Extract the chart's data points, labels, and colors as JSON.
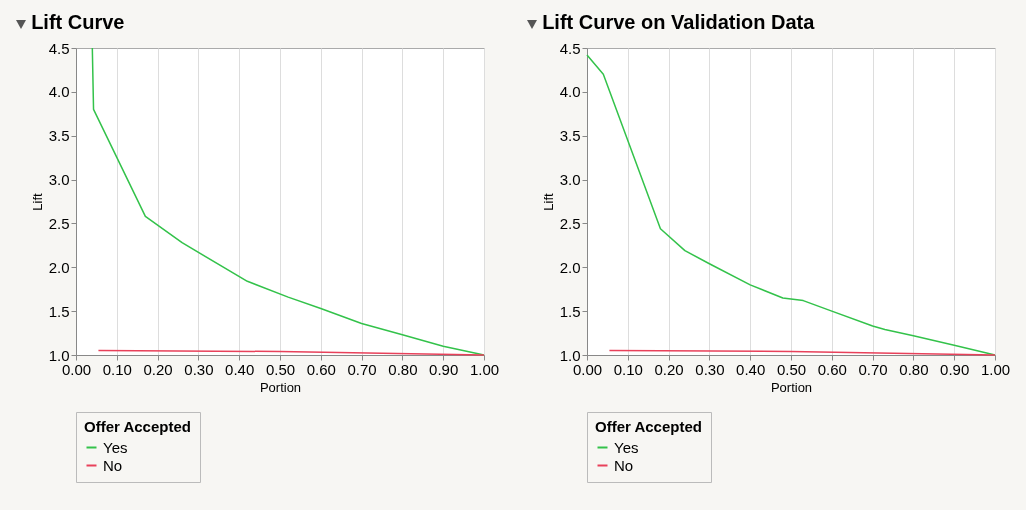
{
  "chart_data": [
    {
      "type": "line",
      "title": "Lift Curve",
      "xlabel": "Portion",
      "ylabel": "Lift",
      "legend_title": "Offer Accepted",
      "legend": "bottom left",
      "grid": "x",
      "xlim": [
        0,
        1
      ],
      "ylim": [
        1,
        4.5
      ],
      "xticks": [
        {
          "value": 0,
          "label": "0.00"
        },
        {
          "value": 0.1,
          "label": "0.10"
        },
        {
          "value": 0.2,
          "label": "0.20"
        },
        {
          "value": 0.3,
          "label": "0.30"
        },
        {
          "value": 0.4,
          "label": "0.40"
        },
        {
          "value": 0.5,
          "label": "0.50"
        },
        {
          "value": 0.6,
          "label": "0.60"
        },
        {
          "value": 0.7,
          "label": "0.70"
        },
        {
          "value": 0.8,
          "label": "0.80"
        },
        {
          "value": 0.9,
          "label": "0.90"
        },
        {
          "value": 1,
          "label": "1.00"
        }
      ],
      "yticks": [
        {
          "value": 1,
          "label": "1.0"
        },
        1.5,
        {
          "value": 2,
          "label": "2.0"
        },
        2.5,
        {
          "value": 3,
          "label": "3.0"
        },
        3.5,
        {
          "value": 4,
          "label": "4.0"
        },
        4.5
      ],
      "series": [
        {
          "name": "Yes",
          "color": "#33c24a",
          "x": [
            0.04,
            0.043,
            0.17,
            0.26,
            0.42,
            0.52,
            0.6,
            0.7,
            0.8,
            0.9,
            1.0
          ],
          "values": [
            4.5,
            3.8,
            2.58,
            2.28,
            1.84,
            1.66,
            1.53,
            1.36,
            1.23,
            1.1,
            1.0
          ]
        },
        {
          "name": "No",
          "color": "#e8415a",
          "x": [
            0.055,
            0.5,
            1.0
          ],
          "values": [
            1.05,
            1.04,
            1.0
          ]
        }
      ]
    },
    {
      "type": "line",
      "title": "Lift Curve on Validation Data",
      "xlabel": "Portion",
      "ylabel": "Lift",
      "legend_title": "Offer Accepted",
      "legend": "bottom left",
      "grid": "x",
      "xlim": [
        0,
        1
      ],
      "ylim": [
        1,
        4.5
      ],
      "xticks": [
        {
          "value": 0,
          "label": "0.00"
        },
        {
          "value": 0.1,
          "label": "0.10"
        },
        {
          "value": 0.2,
          "label": "0.20"
        },
        {
          "value": 0.3,
          "label": "0.30"
        },
        {
          "value": 0.4,
          "label": "0.40"
        },
        {
          "value": 0.5,
          "label": "0.50"
        },
        {
          "value": 0.6,
          "label": "0.60"
        },
        {
          "value": 0.7,
          "label": "0.70"
        },
        {
          "value": 0.8,
          "label": "0.80"
        },
        {
          "value": 0.9,
          "label": "0.90"
        },
        {
          "value": 1,
          "label": "1.00"
        }
      ],
      "yticks": [
        {
          "value": 1,
          "label": "1.0"
        },
        1.5,
        {
          "value": 2,
          "label": "2.0"
        },
        2.5,
        {
          "value": 3,
          "label": "3.0"
        },
        3.5,
        {
          "value": 4,
          "label": "4.0"
        },
        4.5
      ],
      "series": [
        {
          "name": "Yes",
          "color": "#33c24a",
          "x": [
            0,
            0.04,
            0.18,
            0.24,
            0.3,
            0.4,
            0.48,
            0.53,
            0.6,
            0.7,
            0.73,
            0.8,
            0.9,
            1.0
          ],
          "values": [
            4.42,
            4.2,
            2.44,
            2.19,
            2.04,
            1.8,
            1.65,
            1.62,
            1.5,
            1.33,
            1.29,
            1.22,
            1.11,
            1.0
          ]
        },
        {
          "name": "No",
          "color": "#e8415a",
          "x": [
            0.055,
            0.5,
            1.0
          ],
          "values": [
            1.05,
            1.04,
            1.0
          ]
        }
      ]
    }
  ]
}
